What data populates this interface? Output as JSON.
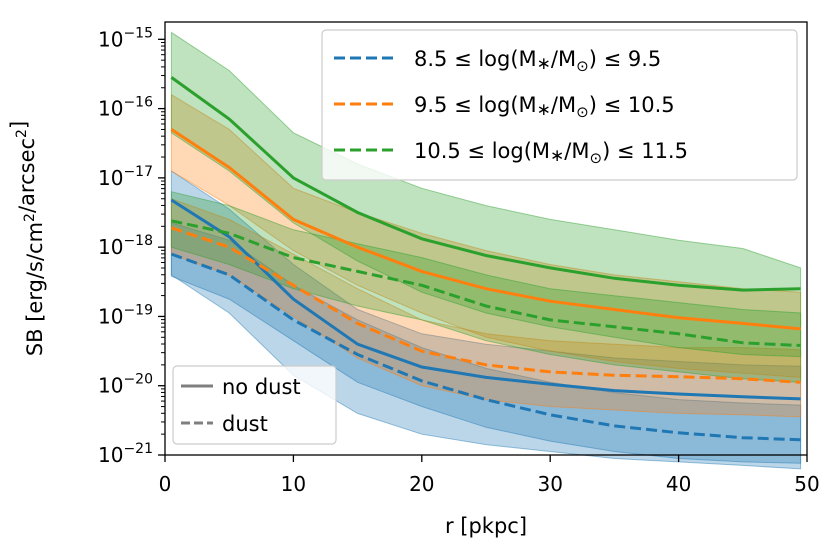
{
  "chart_data": {
    "type": "line",
    "yscale": "log",
    "xlabel": "r [pkpc]",
    "ylabel": "SB [erg/s/cm2/arcsec2]",
    "xlim": [
      0,
      50
    ],
    "ylim_exp": [
      -21,
      -14.75
    ],
    "x_ticks": [
      0,
      10,
      20,
      30,
      40,
      50
    ],
    "y_tick_exps": [
      -21,
      -20,
      -19,
      -18,
      -17,
      -16,
      -15
    ],
    "x": [
      0.5,
      5,
      10,
      15,
      20,
      25,
      30,
      35,
      40,
      45,
      49.5
    ],
    "series": [
      {
        "name": "8.5 ≤ log(M*/M☉) ≤ 9.5",
        "label_prefix": "8.5 ≤ log(M",
        "label_suffix": "/M",
        "label_end": ") ≤ 9.5",
        "color": "#1f77b4",
        "no_dust": [
          -17.32,
          -17.85,
          -18.75,
          -19.4,
          -19.73,
          -19.88,
          -19.98,
          -20.07,
          -20.12,
          -20.16,
          -20.19
        ],
        "no_dust_band": [
          [
            -18.4,
            -16.9
          ],
          [
            -18.95,
            -17.45
          ],
          [
            -19.85,
            -18.25
          ],
          [
            -20.4,
            -18.9
          ],
          [
            -20.7,
            -19.25
          ],
          [
            -20.85,
            -19.4
          ],
          [
            -20.95,
            -19.5
          ],
          [
            -21.05,
            -19.6
          ],
          [
            -21.1,
            -19.65
          ],
          [
            -21.15,
            -19.7
          ],
          [
            -21.2,
            -19.72
          ]
        ],
        "dust": [
          -18.1,
          -18.4,
          -19.05,
          -19.55,
          -19.93,
          -20.2,
          -20.42,
          -20.58,
          -20.68,
          -20.75,
          -20.78
        ],
        "dust_band": [
          [
            -18.42,
            -17.65
          ],
          [
            -18.75,
            -17.9
          ],
          [
            -19.35,
            -18.55
          ],
          [
            -19.95,
            -19.05
          ],
          [
            -20.3,
            -19.45
          ],
          [
            -20.6,
            -19.75
          ],
          [
            -20.8,
            -19.95
          ],
          [
            -20.95,
            -20.1
          ],
          [
            -21.05,
            -20.2
          ],
          [
            -21.1,
            -20.25
          ],
          [
            -21.12,
            -20.28
          ]
        ]
      },
      {
        "name": "9.5 ≤ log(M*/M☉) ≤ 10.5",
        "label_prefix": "9.5 ≤ log(M",
        "label_suffix": "/M",
        "label_end": ") ≤ 10.5",
        "color": "#ff7f0e",
        "no_dust": [
          -16.3,
          -16.85,
          -17.6,
          -18.0,
          -18.35,
          -18.6,
          -18.78,
          -18.9,
          -19.02,
          -19.1,
          -19.18
        ],
        "no_dust_band": [
          [
            -16.9,
            -15.8
          ],
          [
            -17.4,
            -16.3
          ],
          [
            -18.05,
            -17.15
          ],
          [
            -18.55,
            -17.5
          ],
          [
            -18.95,
            -17.8
          ],
          [
            -19.3,
            -18.05
          ],
          [
            -19.5,
            -18.25
          ],
          [
            -19.65,
            -18.4
          ],
          [
            -19.75,
            -18.5
          ],
          [
            -19.82,
            -18.6
          ],
          [
            -19.88,
            -18.65
          ]
        ],
        "dust": [
          -17.72,
          -18.0,
          -18.55,
          -19.1,
          -19.5,
          -19.7,
          -19.8,
          -19.85,
          -19.87,
          -19.9,
          -19.95
        ],
        "dust_band": [
          [
            -18.1,
            -17.3
          ],
          [
            -18.4,
            -17.6
          ],
          [
            -19.0,
            -18.1
          ],
          [
            -19.6,
            -18.6
          ],
          [
            -20.0,
            -19.05
          ],
          [
            -20.2,
            -19.25
          ],
          [
            -20.3,
            -19.35
          ],
          [
            -20.35,
            -19.4
          ],
          [
            -20.4,
            -19.45
          ],
          [
            -20.42,
            -19.45
          ],
          [
            -20.45,
            -19.48
          ]
        ]
      },
      {
        "name": "10.5 ≤ log(M*/M☉) ≤ 11.5",
        "label_prefix": "10.5 ≤ log(M",
        "label_suffix": "/M",
        "label_end": ") ≤ 11.5",
        "color": "#2ca02c",
        "no_dust": [
          -15.55,
          -16.15,
          -17.0,
          -17.5,
          -17.88,
          -18.12,
          -18.3,
          -18.45,
          -18.55,
          -18.62,
          -18.6
        ],
        "no_dust_band": [
          [
            -16.35,
            -14.9
          ],
          [
            -16.9,
            -15.45
          ],
          [
            -17.65,
            -16.35
          ],
          [
            -18.2,
            -16.8
          ],
          [
            -18.65,
            -17.15
          ],
          [
            -18.95,
            -17.4
          ],
          [
            -19.15,
            -17.6
          ],
          [
            -19.3,
            -17.75
          ],
          [
            -19.45,
            -17.9
          ],
          [
            -19.55,
            -18.02
          ],
          [
            -19.58,
            -18.3
          ]
        ],
        "dust": [
          -17.62,
          -17.8,
          -18.15,
          -18.35,
          -18.55,
          -18.85,
          -19.05,
          -19.15,
          -19.25,
          -19.38,
          -19.42
        ],
        "dust_band": [
          [
            -18.0,
            -17.2
          ],
          [
            -18.25,
            -17.4
          ],
          [
            -18.6,
            -17.75
          ],
          [
            -18.85,
            -17.95
          ],
          [
            -19.05,
            -18.15
          ],
          [
            -19.35,
            -18.4
          ],
          [
            -19.55,
            -18.6
          ],
          [
            -19.7,
            -18.7
          ],
          [
            -19.8,
            -18.8
          ],
          [
            -19.9,
            -18.9
          ],
          [
            -19.95,
            -18.95
          ]
        ]
      }
    ],
    "style_legend": [
      {
        "label": "no dust",
        "dash": "solid"
      },
      {
        "label": "dust",
        "dash": "dashed"
      }
    ]
  }
}
